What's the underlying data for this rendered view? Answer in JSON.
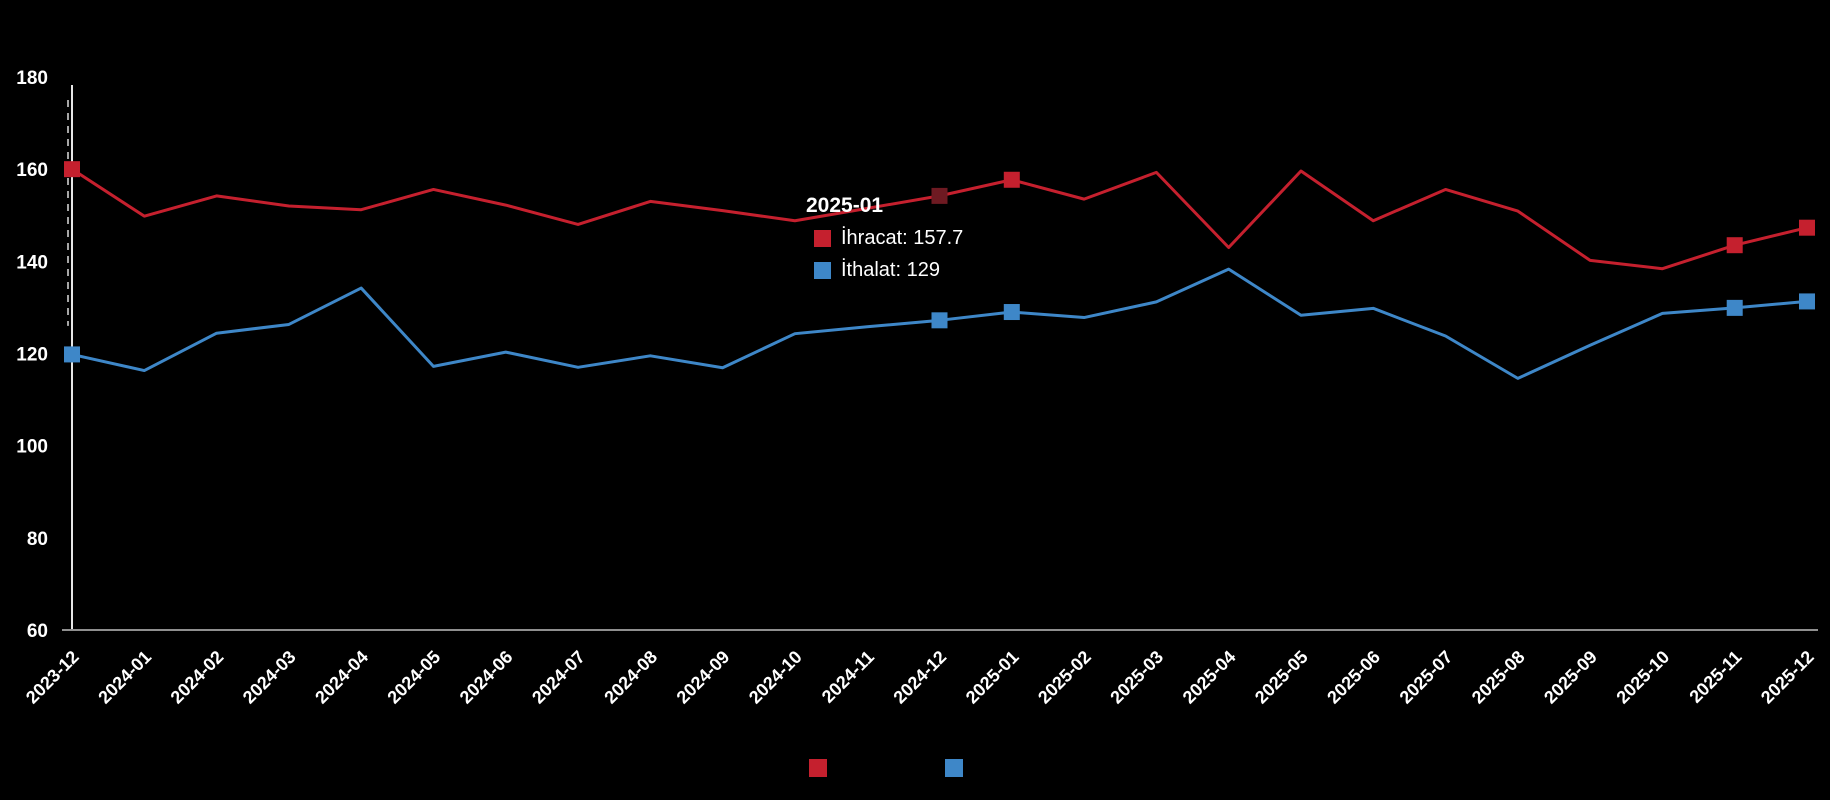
{
  "background": "#000000",
  "text_color": "#ffffff",
  "axis": {
    "vertical_line_color": "#e6e6e6",
    "horizontal_line_color": "#8f8f8f"
  },
  "chart_data": {
    "type": "line",
    "x": [
      "2023-12",
      "2024-01",
      "2024-02",
      "2024-03",
      "2024-04",
      "2024-05",
      "2024-06",
      "2024-07",
      "2024-08",
      "2024-09",
      "2024-10",
      "2024-11",
      "2024-12",
      "2025-01",
      "2025-02",
      "2025-03",
      "2025-04",
      "2025-05",
      "2025-06",
      "2025-07",
      "2025-08",
      "2025-09",
      "2025-10",
      "2025-11",
      "2025-12"
    ],
    "series": [
      {
        "name": "İhracat",
        "color": "#c5202e",
        "values": [
          160.0,
          149.8,
          154.2,
          152.0,
          151.2,
          155.6,
          152.2,
          148.0,
          153.0,
          151.0,
          148.8,
          151.5,
          154.2,
          157.7,
          153.5,
          159.3,
          143.0,
          159.6,
          148.8,
          155.6,
          150.9,
          140.2,
          138.4,
          143.5,
          147.3
        ]
      },
      {
        "name": "İthalat",
        "color": "#3e87c8",
        "values": [
          119.8,
          116.3,
          124.4,
          126.3,
          134.2,
          117.2,
          120.3,
          117.0,
          119.5,
          116.9,
          124.3,
          125.8,
          127.2,
          129.0,
          127.8,
          131.2,
          138.3,
          128.3,
          129.8,
          123.8,
          114.6,
          121.8,
          128.7,
          129.9,
          131.3
        ]
      }
    ],
    "ylim": [
      60,
      180
    ],
    "yticks": [
      180,
      160,
      140,
      120,
      100,
      80,
      60
    ],
    "grid": false,
    "legend_position": "bottom",
    "markers": [
      {
        "series": 0,
        "index": 0
      },
      {
        "series": 0,
        "index": 12,
        "color": "#6e1a22"
      },
      {
        "series": 0,
        "index": 13
      },
      {
        "series": 0,
        "index": 23
      },
      {
        "series": 0,
        "index": 24
      },
      {
        "series": 1,
        "index": 0
      },
      {
        "series": 1,
        "index": 12
      },
      {
        "series": 1,
        "index": 13
      },
      {
        "series": 1,
        "index": 23
      },
      {
        "series": 1,
        "index": 24
      }
    ],
    "guide_line": {
      "x_index": 0,
      "value_from": 175.0,
      "value_to": 126.0,
      "color": "#cfcfcf"
    }
  },
  "tooltip": {
    "title": "2025-01",
    "rows": [
      {
        "label": "İhracat",
        "value": "157.7",
        "color": "#c5202e"
      },
      {
        "label": "İthalat",
        "value": "129",
        "color": "#3e87c8"
      }
    ]
  },
  "legend": {
    "label_color": "#000000",
    "items": [
      {
        "label": "İhracat",
        "color": "#c5202e"
      },
      {
        "label": "İthalat",
        "color": "#3e87c8"
      }
    ]
  }
}
